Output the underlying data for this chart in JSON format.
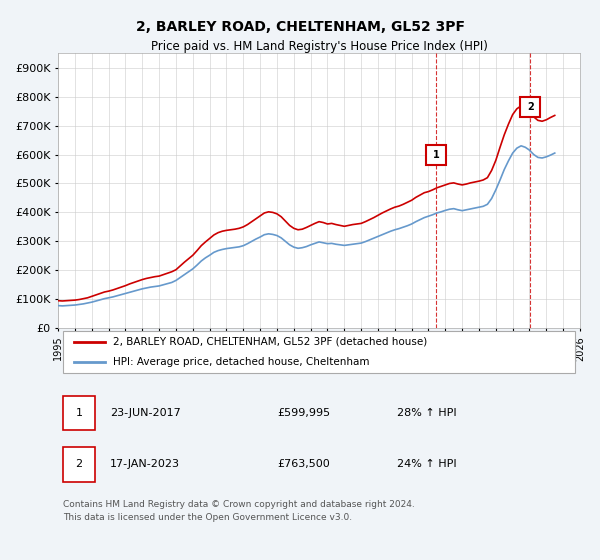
{
  "title": "2, BARLEY ROAD, CHELTENHAM, GL52 3PF",
  "subtitle": "Price paid vs. HM Land Registry's House Price Index (HPI)",
  "xlim": [
    1995,
    2026
  ],
  "ylim": [
    0,
    950000
  ],
  "yticks": [
    0,
    100000,
    200000,
    300000,
    400000,
    500000,
    600000,
    700000,
    800000,
    900000
  ],
  "ytick_labels": [
    "£0",
    "£100K",
    "£200K",
    "£300K",
    "£400K",
    "£500K",
    "£600K",
    "£700K",
    "£800K",
    "£900K"
  ],
  "xticks": [
    1995,
    1996,
    1997,
    1998,
    1999,
    2000,
    2001,
    2002,
    2003,
    2004,
    2005,
    2006,
    2007,
    2008,
    2009,
    2010,
    2011,
    2012,
    2013,
    2014,
    2015,
    2016,
    2017,
    2018,
    2019,
    2020,
    2021,
    2022,
    2023,
    2024,
    2025,
    2026
  ],
  "red_line_color": "#cc0000",
  "blue_line_color": "#6699cc",
  "marker1_date": 2017.47,
  "marker1_value": 599995,
  "marker1_label": "1",
  "marker2_date": 2023.04,
  "marker2_value": 763500,
  "marker2_label": "2",
  "annotation1": [
    "1",
    "23-JUN-2017",
    "£599,995",
    "28% ↑ HPI"
  ],
  "annotation2": [
    "2",
    "17-JAN-2023",
    "£763,500",
    "24% ↑ HPI"
  ],
  "legend_red": "2, BARLEY ROAD, CHELTENHAM, GL52 3PF (detached house)",
  "legend_blue": "HPI: Average price, detached house, Cheltenham",
  "footer": "Contains HM Land Registry data © Crown copyright and database right 2024.\nThis data is licensed under the Open Government Licence v3.0.",
  "background_color": "#f0f4f8",
  "plot_bg_color": "#ffffff",
  "hpi_red_data_x": [
    1995.0,
    1995.25,
    1995.5,
    1995.75,
    1996.0,
    1996.25,
    1996.5,
    1996.75,
    1997.0,
    1997.25,
    1997.5,
    1997.75,
    1998.0,
    1998.25,
    1998.5,
    1998.75,
    1999.0,
    1999.25,
    1999.5,
    1999.75,
    2000.0,
    2000.25,
    2000.5,
    2000.75,
    2001.0,
    2001.25,
    2001.5,
    2001.75,
    2002.0,
    2002.25,
    2002.5,
    2002.75,
    2003.0,
    2003.25,
    2003.5,
    2003.75,
    2004.0,
    2004.25,
    2004.5,
    2004.75,
    2005.0,
    2005.25,
    2005.5,
    2005.75,
    2006.0,
    2006.25,
    2006.5,
    2006.75,
    2007.0,
    2007.25,
    2007.5,
    2007.75,
    2008.0,
    2008.25,
    2008.5,
    2008.75,
    2009.0,
    2009.25,
    2009.5,
    2009.75,
    2010.0,
    2010.25,
    2010.5,
    2010.75,
    2011.0,
    2011.25,
    2011.5,
    2011.75,
    2012.0,
    2012.25,
    2012.5,
    2012.75,
    2013.0,
    2013.25,
    2013.5,
    2013.75,
    2014.0,
    2014.25,
    2014.5,
    2014.75,
    2015.0,
    2015.25,
    2015.5,
    2015.75,
    2016.0,
    2016.25,
    2016.5,
    2016.75,
    2017.0,
    2017.25,
    2017.5,
    2017.75,
    2018.0,
    2018.25,
    2018.5,
    2018.75,
    2019.0,
    2019.25,
    2019.5,
    2019.75,
    2020.0,
    2020.25,
    2020.5,
    2020.75,
    2021.0,
    2021.25,
    2021.5,
    2021.75,
    2022.0,
    2022.25,
    2022.5,
    2022.75,
    2023.0,
    2023.25,
    2023.5,
    2023.75,
    2024.0,
    2024.25,
    2024.5
  ],
  "hpi_red_data_y": [
    95000,
    94000,
    95000,
    96000,
    97000,
    99000,
    102000,
    105000,
    110000,
    115000,
    120000,
    125000,
    128000,
    132000,
    137000,
    142000,
    147000,
    153000,
    158000,
    163000,
    168000,
    172000,
    175000,
    178000,
    180000,
    185000,
    190000,
    195000,
    202000,
    215000,
    228000,
    240000,
    252000,
    268000,
    285000,
    298000,
    310000,
    322000,
    330000,
    335000,
    338000,
    340000,
    342000,
    345000,
    350000,
    358000,
    368000,
    378000,
    388000,
    398000,
    402000,
    400000,
    395000,
    385000,
    370000,
    355000,
    345000,
    340000,
    342000,
    348000,
    355000,
    362000,
    368000,
    365000,
    360000,
    362000,
    358000,
    355000,
    352000,
    355000,
    358000,
    360000,
    362000,
    368000,
    375000,
    382000,
    390000,
    398000,
    405000,
    412000,
    418000,
    422000,
    428000,
    435000,
    442000,
    452000,
    460000,
    468000,
    472000,
    478000,
    485000,
    490000,
    495000,
    500000,
    502000,
    498000,
    495000,
    498000,
    502000,
    505000,
    508000,
    512000,
    520000,
    545000,
    580000,
    625000,
    668000,
    705000,
    738000,
    758000,
    768000,
    762000,
    748000,
    730000,
    718000,
    715000,
    720000,
    728000,
    735000
  ],
  "hpi_blue_data_x": [
    1995.0,
    1995.25,
    1995.5,
    1995.75,
    1996.0,
    1996.25,
    1996.5,
    1996.75,
    1997.0,
    1997.25,
    1997.5,
    1997.75,
    1998.0,
    1998.25,
    1998.5,
    1998.75,
    1999.0,
    1999.25,
    1999.5,
    1999.75,
    2000.0,
    2000.25,
    2000.5,
    2000.75,
    2001.0,
    2001.25,
    2001.5,
    2001.75,
    2002.0,
    2002.25,
    2002.5,
    2002.75,
    2003.0,
    2003.25,
    2003.5,
    2003.75,
    2004.0,
    2004.25,
    2004.5,
    2004.75,
    2005.0,
    2005.25,
    2005.5,
    2005.75,
    2006.0,
    2006.25,
    2006.5,
    2006.75,
    2007.0,
    2007.25,
    2007.5,
    2007.75,
    2008.0,
    2008.25,
    2008.5,
    2008.75,
    2009.0,
    2009.25,
    2009.5,
    2009.75,
    2010.0,
    2010.25,
    2010.5,
    2010.75,
    2011.0,
    2011.25,
    2011.5,
    2011.75,
    2012.0,
    2012.25,
    2012.5,
    2012.75,
    2013.0,
    2013.25,
    2013.5,
    2013.75,
    2014.0,
    2014.25,
    2014.5,
    2014.75,
    2015.0,
    2015.25,
    2015.5,
    2015.75,
    2016.0,
    2016.25,
    2016.5,
    2016.75,
    2017.0,
    2017.25,
    2017.5,
    2017.75,
    2018.0,
    2018.25,
    2018.5,
    2018.75,
    2019.0,
    2019.25,
    2019.5,
    2019.75,
    2020.0,
    2020.25,
    2020.5,
    2020.75,
    2021.0,
    2021.25,
    2021.5,
    2021.75,
    2022.0,
    2022.25,
    2022.5,
    2022.75,
    2023.0,
    2023.25,
    2023.5,
    2023.75,
    2024.0,
    2024.25,
    2024.5
  ],
  "hpi_blue_data_y": [
    78000,
    77000,
    78000,
    79000,
    80000,
    82000,
    84000,
    87000,
    90000,
    94000,
    98000,
    102000,
    105000,
    108000,
    112000,
    116000,
    120000,
    124000,
    128000,
    132000,
    136000,
    139000,
    142000,
    144000,
    146000,
    150000,
    154000,
    158000,
    165000,
    175000,
    185000,
    195000,
    205000,
    218000,
    232000,
    243000,
    252000,
    262000,
    268000,
    272000,
    275000,
    277000,
    279000,
    281000,
    285000,
    292000,
    300000,
    308000,
    315000,
    323000,
    326000,
    324000,
    320000,
    312000,
    300000,
    288000,
    280000,
    276000,
    278000,
    282000,
    288000,
    293000,
    298000,
    295000,
    292000,
    293000,
    290000,
    288000,
    286000,
    288000,
    290000,
    292000,
    294000,
    299000,
    305000,
    311000,
    317000,
    323000,
    329000,
    335000,
    340000,
    344000,
    349000,
    354000,
    360000,
    368000,
    375000,
    382000,
    387000,
    392000,
    398000,
    402000,
    407000,
    411000,
    413000,
    409000,
    406000,
    409000,
    412000,
    415000,
    418000,
    421000,
    428000,
    448000,
    478000,
    512000,
    548000,
    578000,
    605000,
    622000,
    630000,
    625000,
    615000,
    600000,
    590000,
    588000,
    592000,
    598000,
    605000
  ]
}
